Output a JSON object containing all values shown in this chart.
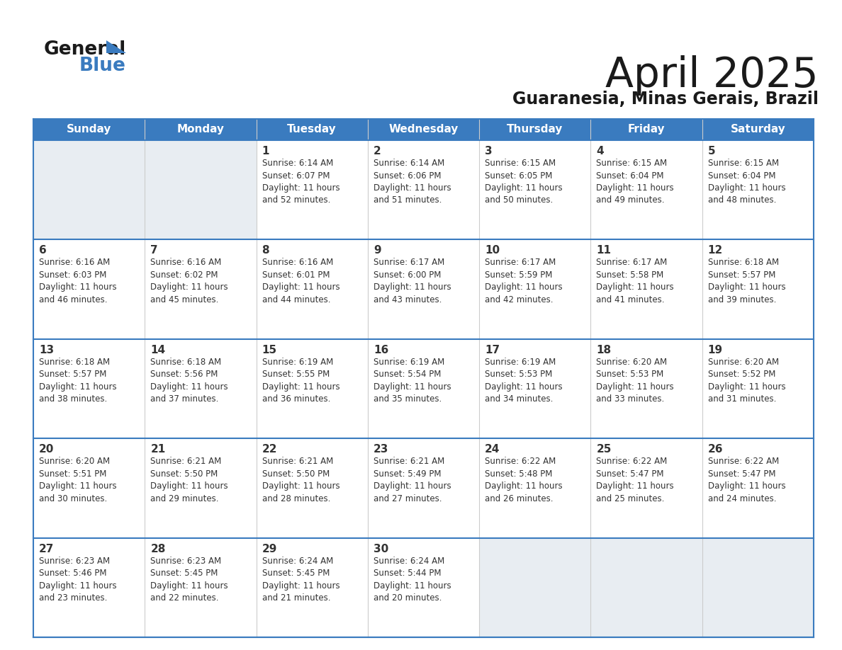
{
  "title": "April 2025",
  "subtitle": "Guaranesia, Minas Gerais, Brazil",
  "header_bg": "#3a7bbf",
  "header_text_color": "#ffffff",
  "cell_bg_empty": "#e8edf2",
  "cell_bg_filled": "#ffffff",
  "separator_color": "#3a7bbf",
  "row_separator_color": "#3a7bbf",
  "col_separator_color": "#cccccc",
  "text_color": "#333333",
  "days_of_week": [
    "Sunday",
    "Monday",
    "Tuesday",
    "Wednesday",
    "Thursday",
    "Friday",
    "Saturday"
  ],
  "weeks": [
    [
      {
        "day": null,
        "text": ""
      },
      {
        "day": null,
        "text": ""
      },
      {
        "day": 1,
        "text": "Sunrise: 6:14 AM\nSunset: 6:07 PM\nDaylight: 11 hours\nand 52 minutes."
      },
      {
        "day": 2,
        "text": "Sunrise: 6:14 AM\nSunset: 6:06 PM\nDaylight: 11 hours\nand 51 minutes."
      },
      {
        "day": 3,
        "text": "Sunrise: 6:15 AM\nSunset: 6:05 PM\nDaylight: 11 hours\nand 50 minutes."
      },
      {
        "day": 4,
        "text": "Sunrise: 6:15 AM\nSunset: 6:04 PM\nDaylight: 11 hours\nand 49 minutes."
      },
      {
        "day": 5,
        "text": "Sunrise: 6:15 AM\nSunset: 6:04 PM\nDaylight: 11 hours\nand 48 minutes."
      }
    ],
    [
      {
        "day": 6,
        "text": "Sunrise: 6:16 AM\nSunset: 6:03 PM\nDaylight: 11 hours\nand 46 minutes."
      },
      {
        "day": 7,
        "text": "Sunrise: 6:16 AM\nSunset: 6:02 PM\nDaylight: 11 hours\nand 45 minutes."
      },
      {
        "day": 8,
        "text": "Sunrise: 6:16 AM\nSunset: 6:01 PM\nDaylight: 11 hours\nand 44 minutes."
      },
      {
        "day": 9,
        "text": "Sunrise: 6:17 AM\nSunset: 6:00 PM\nDaylight: 11 hours\nand 43 minutes."
      },
      {
        "day": 10,
        "text": "Sunrise: 6:17 AM\nSunset: 5:59 PM\nDaylight: 11 hours\nand 42 minutes."
      },
      {
        "day": 11,
        "text": "Sunrise: 6:17 AM\nSunset: 5:58 PM\nDaylight: 11 hours\nand 41 minutes."
      },
      {
        "day": 12,
        "text": "Sunrise: 6:18 AM\nSunset: 5:57 PM\nDaylight: 11 hours\nand 39 minutes."
      }
    ],
    [
      {
        "day": 13,
        "text": "Sunrise: 6:18 AM\nSunset: 5:57 PM\nDaylight: 11 hours\nand 38 minutes."
      },
      {
        "day": 14,
        "text": "Sunrise: 6:18 AM\nSunset: 5:56 PM\nDaylight: 11 hours\nand 37 minutes."
      },
      {
        "day": 15,
        "text": "Sunrise: 6:19 AM\nSunset: 5:55 PM\nDaylight: 11 hours\nand 36 minutes."
      },
      {
        "day": 16,
        "text": "Sunrise: 6:19 AM\nSunset: 5:54 PM\nDaylight: 11 hours\nand 35 minutes."
      },
      {
        "day": 17,
        "text": "Sunrise: 6:19 AM\nSunset: 5:53 PM\nDaylight: 11 hours\nand 34 minutes."
      },
      {
        "day": 18,
        "text": "Sunrise: 6:20 AM\nSunset: 5:53 PM\nDaylight: 11 hours\nand 33 minutes."
      },
      {
        "day": 19,
        "text": "Sunrise: 6:20 AM\nSunset: 5:52 PM\nDaylight: 11 hours\nand 31 minutes."
      }
    ],
    [
      {
        "day": 20,
        "text": "Sunrise: 6:20 AM\nSunset: 5:51 PM\nDaylight: 11 hours\nand 30 minutes."
      },
      {
        "day": 21,
        "text": "Sunrise: 6:21 AM\nSunset: 5:50 PM\nDaylight: 11 hours\nand 29 minutes."
      },
      {
        "day": 22,
        "text": "Sunrise: 6:21 AM\nSunset: 5:50 PM\nDaylight: 11 hours\nand 28 minutes."
      },
      {
        "day": 23,
        "text": "Sunrise: 6:21 AM\nSunset: 5:49 PM\nDaylight: 11 hours\nand 27 minutes."
      },
      {
        "day": 24,
        "text": "Sunrise: 6:22 AM\nSunset: 5:48 PM\nDaylight: 11 hours\nand 26 minutes."
      },
      {
        "day": 25,
        "text": "Sunrise: 6:22 AM\nSunset: 5:47 PM\nDaylight: 11 hours\nand 25 minutes."
      },
      {
        "day": 26,
        "text": "Sunrise: 6:22 AM\nSunset: 5:47 PM\nDaylight: 11 hours\nand 24 minutes."
      }
    ],
    [
      {
        "day": 27,
        "text": "Sunrise: 6:23 AM\nSunset: 5:46 PM\nDaylight: 11 hours\nand 23 minutes."
      },
      {
        "day": 28,
        "text": "Sunrise: 6:23 AM\nSunset: 5:45 PM\nDaylight: 11 hours\nand 22 minutes."
      },
      {
        "day": 29,
        "text": "Sunrise: 6:24 AM\nSunset: 5:45 PM\nDaylight: 11 hours\nand 21 minutes."
      },
      {
        "day": 30,
        "text": "Sunrise: 6:24 AM\nSunset: 5:44 PM\nDaylight: 11 hours\nand 20 minutes."
      },
      {
        "day": null,
        "text": ""
      },
      {
        "day": null,
        "text": ""
      },
      {
        "day": null,
        "text": ""
      }
    ]
  ],
  "logo_general_color": "#1a1a1a",
  "logo_blue_color": "#3a7bbf",
  "logo_triangle_color": "#3a7bbf",
  "title_color": "#1a1a1a",
  "subtitle_color": "#1a1a1a"
}
